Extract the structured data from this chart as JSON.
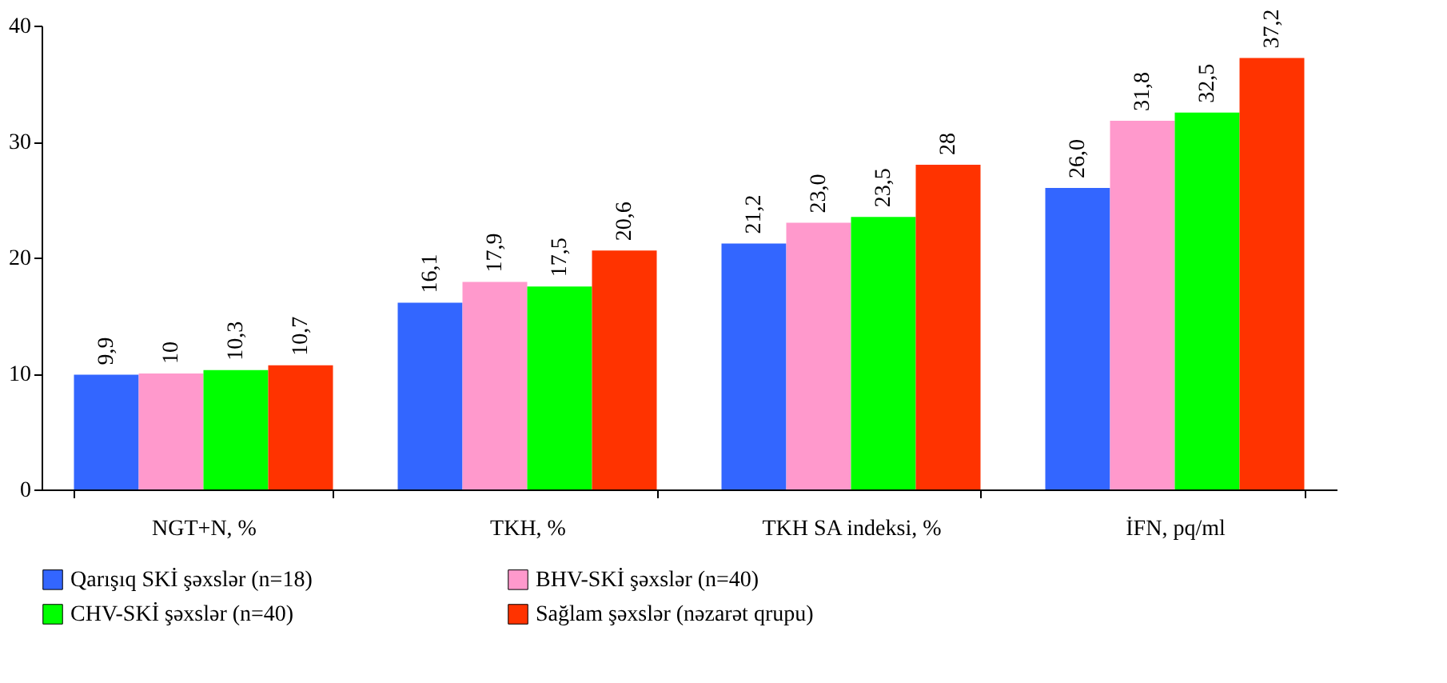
{
  "chart_data": {
    "type": "bar",
    "categories": [
      "NGT+N, %",
      "TKH, %",
      "TKH SA indeksi, %",
      "İFN, pq/ml"
    ],
    "series": [
      {
        "name": "Qarışıq SKİ şəxslər (n=18)",
        "color": "#3366ff",
        "values": [
          9.9,
          16.1,
          21.2,
          26.0
        ],
        "value_labels": [
          "9,9",
          "16,1",
          "21,2",
          "26,0"
        ]
      },
      {
        "name": "BHV-SKİ şəxslər (n=40)",
        "color": "#ff99cc",
        "values": [
          10,
          17.9,
          23.0,
          31.8
        ],
        "value_labels": [
          "10",
          "17,9",
          "23,0",
          "31,8"
        ]
      },
      {
        "name": "CHV-SKİ şəxslər (n=40)",
        "color": "#00ff00",
        "values": [
          10.3,
          17.5,
          23.5,
          32.5
        ],
        "value_labels": [
          "10,3",
          "17,5",
          "23,5",
          "32,5"
        ]
      },
      {
        "name": "Sağlam şəxslər (nəzarət qrupu)",
        "color": "#ff3300",
        "values": [
          10.7,
          20.6,
          28,
          37.2
        ],
        "value_labels": [
          "10,7",
          "20,6",
          "28",
          "37,2"
        ]
      }
    ],
    "ylim": [
      0,
      40
    ],
    "yticks": [
      0,
      10,
      20,
      30,
      40
    ],
    "grid": false,
    "legend": "bottom"
  }
}
